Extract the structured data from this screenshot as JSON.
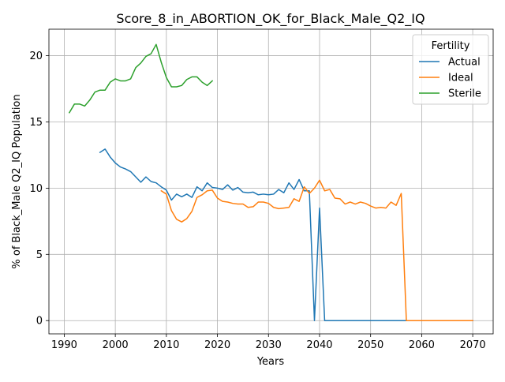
{
  "chart_data": {
    "type": "line",
    "title": "Score_8_in_ABORTION_OK_for_Black_Male_Q2_IQ",
    "xlabel": "Years",
    "ylabel": "% of Black_Male Q2_IQ Population",
    "xlim": [
      1987,
      2074
    ],
    "ylim": [
      -1,
      22
    ],
    "xticks": [
      1990,
      2000,
      2010,
      2020,
      2030,
      2040,
      2050,
      2060,
      2070
    ],
    "yticks": [
      0,
      5,
      10,
      15,
      20
    ],
    "grid": true,
    "legend": {
      "title": "Fertility",
      "location": "top-right"
    },
    "series": [
      {
        "name": "Actual",
        "color": "#1f77b4",
        "points": [
          [
            1997,
            12.7
          ],
          [
            1998,
            12.95
          ],
          [
            1999,
            12.35
          ],
          [
            2000,
            11.9
          ],
          [
            2001,
            11.6
          ],
          [
            2002,
            11.45
          ],
          [
            2003,
            11.25
          ],
          [
            2004,
            10.85
          ],
          [
            2005,
            10.45
          ],
          [
            2006,
            10.85
          ],
          [
            2007,
            10.5
          ],
          [
            2008,
            10.4
          ],
          [
            2009,
            10.1
          ],
          [
            2010,
            9.85
          ],
          [
            2011,
            9.1
          ],
          [
            2012,
            9.55
          ],
          [
            2013,
            9.35
          ],
          [
            2014,
            9.55
          ],
          [
            2015,
            9.3
          ],
          [
            2016,
            10.1
          ],
          [
            2017,
            9.8
          ],
          [
            2018,
            10.4
          ],
          [
            2019,
            10.05
          ],
          [
            2020,
            10.0
          ],
          [
            2021,
            9.9
          ],
          [
            2022,
            10.25
          ],
          [
            2023,
            9.85
          ],
          [
            2024,
            10.05
          ],
          [
            2025,
            9.7
          ],
          [
            2026,
            9.65
          ],
          [
            2027,
            9.7
          ],
          [
            2028,
            9.5
          ],
          [
            2029,
            9.55
          ],
          [
            2030,
            9.5
          ],
          [
            2031,
            9.55
          ],
          [
            2032,
            9.9
          ],
          [
            2033,
            9.65
          ],
          [
            2034,
            10.4
          ],
          [
            2035,
            9.9
          ],
          [
            2036,
            10.65
          ],
          [
            2037,
            9.8
          ],
          [
            2038,
            9.8
          ],
          [
            2039,
            0.0
          ],
          [
            2040,
            8.5
          ],
          [
            2041,
            0.0
          ],
          [
            2042,
            0.0
          ],
          [
            2050,
            0.0
          ],
          [
            2060,
            0.0
          ],
          [
            2070,
            0.0
          ]
        ]
      },
      {
        "name": "Ideal",
        "color": "#ff7f0e",
        "points": [
          [
            2009,
            9.8
          ],
          [
            2010,
            9.55
          ],
          [
            2011,
            8.3
          ],
          [
            2012,
            7.65
          ],
          [
            2013,
            7.45
          ],
          [
            2014,
            7.7
          ],
          [
            2015,
            8.25
          ],
          [
            2016,
            9.3
          ],
          [
            2017,
            9.5
          ],
          [
            2018,
            9.8
          ],
          [
            2019,
            9.85
          ],
          [
            2020,
            9.25
          ],
          [
            2021,
            9.0
          ],
          [
            2022,
            8.95
          ],
          [
            2023,
            8.85
          ],
          [
            2024,
            8.8
          ],
          [
            2025,
            8.8
          ],
          [
            2026,
            8.55
          ],
          [
            2027,
            8.6
          ],
          [
            2028,
            8.95
          ],
          [
            2029,
            8.95
          ],
          [
            2030,
            8.85
          ],
          [
            2031,
            8.55
          ],
          [
            2032,
            8.45
          ],
          [
            2033,
            8.5
          ],
          [
            2034,
            8.55
          ],
          [
            2035,
            9.2
          ],
          [
            2036,
            9.0
          ],
          [
            2037,
            10.1
          ],
          [
            2038,
            9.6
          ],
          [
            2039,
            10.0
          ],
          [
            2040,
            10.6
          ],
          [
            2041,
            9.8
          ],
          [
            2042,
            9.9
          ],
          [
            2043,
            9.25
          ],
          [
            2044,
            9.2
          ],
          [
            2045,
            8.8
          ],
          [
            2046,
            8.95
          ],
          [
            2047,
            8.8
          ],
          [
            2048,
            8.95
          ],
          [
            2049,
            8.85
          ],
          [
            2050,
            8.65
          ],
          [
            2051,
            8.5
          ],
          [
            2052,
            8.55
          ],
          [
            2053,
            8.5
          ],
          [
            2054,
            8.95
          ],
          [
            2055,
            8.7
          ],
          [
            2056,
            9.6
          ],
          [
            2057,
            0.0
          ],
          [
            2060,
            0.0
          ],
          [
            2070,
            0.0
          ]
        ]
      },
      {
        "name": "Sterile",
        "color": "#2ca02c",
        "points": [
          [
            1991,
            15.7
          ],
          [
            1992,
            16.35
          ],
          [
            1993,
            16.35
          ],
          [
            1994,
            16.2
          ],
          [
            1995,
            16.65
          ],
          [
            1996,
            17.25
          ],
          [
            1997,
            17.4
          ],
          [
            1998,
            17.4
          ],
          [
            1999,
            18.0
          ],
          [
            2000,
            18.25
          ],
          [
            2001,
            18.1
          ],
          [
            2002,
            18.1
          ],
          [
            2003,
            18.25
          ],
          [
            2004,
            19.1
          ],
          [
            2005,
            19.45
          ],
          [
            2006,
            19.95
          ],
          [
            2007,
            20.15
          ],
          [
            2008,
            20.85
          ],
          [
            2009,
            19.5
          ],
          [
            2010,
            18.35
          ],
          [
            2011,
            17.65
          ],
          [
            2012,
            17.65
          ],
          [
            2013,
            17.75
          ],
          [
            2014,
            18.2
          ],
          [
            2015,
            18.4
          ],
          [
            2016,
            18.4
          ],
          [
            2017,
            18.0
          ],
          [
            2018,
            17.75
          ],
          [
            2019,
            18.1
          ]
        ]
      }
    ]
  }
}
